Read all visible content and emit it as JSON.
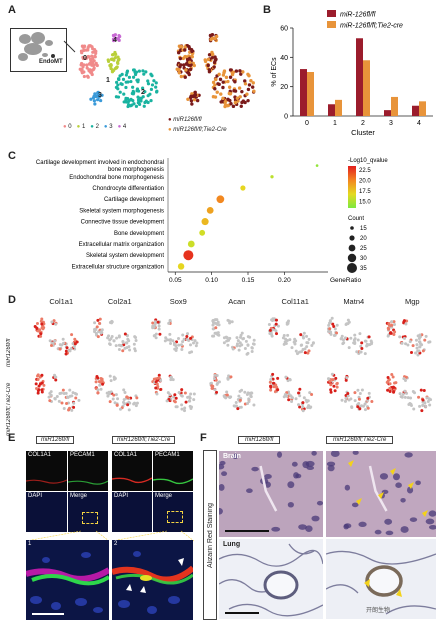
{
  "panels": {
    "A": {
      "label": "A",
      "endomt_label": "EndoMT",
      "cluster_legend": [
        {
          "id": "0",
          "color": "#f08a8a"
        },
        {
          "id": "1",
          "color": "#b9cf3a"
        },
        {
          "id": "2",
          "color": "#19b3a0"
        },
        {
          "id": "3",
          "color": "#3a9ad9"
        },
        {
          "id": "4",
          "color": "#c86ad3"
        }
      ],
      "umap_cluster_labels": [
        "0",
        "1",
        "2",
        "3",
        "4"
      ],
      "genotype_legend": [
        {
          "label": "miR126fl/fl",
          "color": "#7a1a1a"
        },
        {
          "label": "miR126fl/fl;Tie2-Cre",
          "color": "#e8943a"
        }
      ]
    },
    "B": {
      "label": "B"
    },
    "C": {
      "label": "C"
    },
    "D": {
      "label": "D",
      "genes": [
        "Col1a1",
        "Col2a1",
        "Sox9",
        "Acan",
        "Col11a1",
        "Matn4",
        "Mgp"
      ],
      "rows": [
        "miR126fl/fl",
        "miR126fl/fl;Tie2-Cre"
      ]
    },
    "E": {
      "label": "E",
      "columns": [
        "miR126fl/fl",
        "miR126fl/fl;Tie2-Cre"
      ],
      "channel_labels": [
        "COL1A1",
        "PECAM1",
        "DAPI",
        "Merge"
      ],
      "zoom_labels": [
        "1",
        "2"
      ]
    },
    "F": {
      "label": "F",
      "columns": [
        "miR126fl/fl",
        "miR126fl/fl;Tie2-Cre"
      ],
      "side_label": "Alizarin Red Staining",
      "rows": [
        "Brain",
        "Lung"
      ]
    }
  },
  "watermark": "开朗生物",
  "chart_data": [
    {
      "type": "bar",
      "ylabel": "% of ECs",
      "xlabel": "Cluster",
      "categories": [
        "0",
        "1",
        "2",
        "3",
        "4"
      ],
      "ylim": [
        0,
        60
      ],
      "yticks": [
        0,
        20,
        40,
        60
      ],
      "legend_position": "top-right",
      "series": [
        {
          "name": "miR-126fl/fl",
          "color": "#9b1c2c",
          "values": [
            32,
            8,
            53,
            4,
            7
          ]
        },
        {
          "name": "miR-126fl/fl;Tie2-cre",
          "color": "#e8943a",
          "values": [
            30,
            11,
            38,
            13,
            10
          ]
        }
      ]
    },
    {
      "type": "scatter",
      "xlabel": "GeneRatio",
      "x_ticks": [
        0.05,
        0.1,
        0.15,
        0.2
      ],
      "x_tick_labels": [
        "0.05",
        "0.10",
        "0.15",
        "0.20"
      ],
      "xlim": [
        0.04,
        0.26
      ],
      "terms": [
        "Cartilage development involved in endochondral bone morphogenesis",
        "Endochondral bone morphogenesis",
        "Chondrocyte differentiation",
        "Cartilage development",
        "Skeletal system morphogenesis",
        "Connective tissue development",
        "Bone development",
        "Extracellular matrix organization",
        "Skeletal system development",
        "Extracellular structure organization"
      ],
      "gene_ratio": [
        0.245,
        0.183,
        0.143,
        0.112,
        0.098,
        0.091,
        0.087,
        0.072,
        0.068,
        0.058
      ],
      "count": [
        12,
        14,
        20,
        28,
        25,
        26,
        22,
        25,
        35,
        24
      ],
      "qvalue": [
        14.2,
        15.5,
        17.0,
        20.0,
        19.0,
        18.2,
        16.2,
        16.0,
        22.8,
        17.0
      ],
      "color_legend": {
        "title": "-Log10_qvalue",
        "ticks": [
          22.5,
          20.0,
          17.5,
          15.0
        ],
        "min": 13.5,
        "max": 23.5
      },
      "size_legend": {
        "title": "Count",
        "values": [
          15,
          20,
          25,
          30,
          35
        ]
      }
    }
  ]
}
